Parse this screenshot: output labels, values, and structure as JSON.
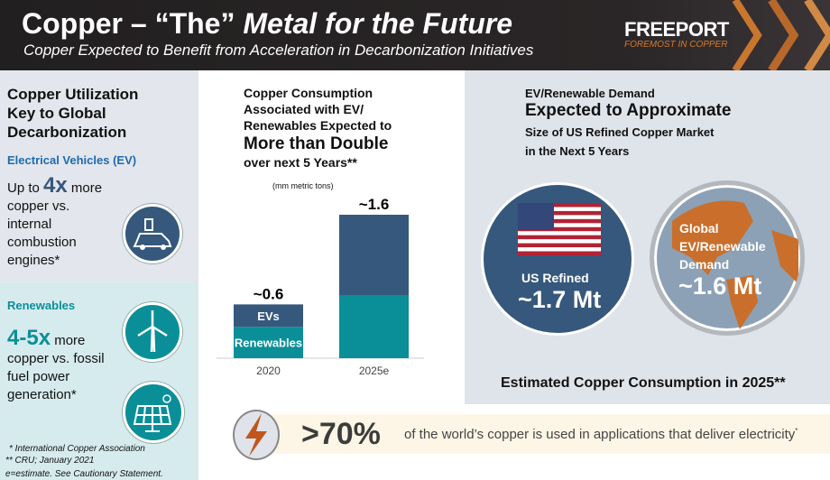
{
  "header": {
    "title_a": "Copper – “The” ",
    "title_b": "Metal for the Future",
    "subtitle": "Copper Expected to Benefit from Acceleration in Decarbonization Initiatives",
    "logo": "FREEPORT",
    "logo_tagline": "FOREMOST IN COPPER"
  },
  "left": {
    "heading": "Copper Utilization Key to Global Decarbonization",
    "ev": {
      "label": "Electrical Vehicles (EV)",
      "pre": "Up to ",
      "big": "4x",
      "post": " more",
      "rest": "copper vs. internal combustion engines*",
      "icon": "electric-car-icon"
    },
    "renew": {
      "label": "Renewables",
      "big": "4-5x",
      "post": " more",
      "rest": "copper vs. fossil fuel power generation*",
      "icons": [
        "wind-turbine-icon",
        "solar-panel-icon"
      ]
    },
    "footnotes": [
      "* International Copper Association",
      "** CRU; January 2021",
      "e=estimate. See Cautionary Statement."
    ]
  },
  "middle": {
    "line1": "Copper Consumption Associated with EV/ Renewables Expected to",
    "big": "More than Double",
    "line2": "over next 5 Years**"
  },
  "chart_data": {
    "type": "bar",
    "stacked": true,
    "ylabel": "(mm metric tons)",
    "categories": [
      "2020",
      "2025e"
    ],
    "series": [
      {
        "name": "Renewables",
        "values": [
          0.35,
          0.7
        ],
        "color": "#0a8f98"
      },
      {
        "name": "EVs",
        "values": [
          0.25,
          0.9
        ],
        "color": "#36587c"
      }
    ],
    "totals_labels": [
      "~0.6",
      "~1.6"
    ],
    "ylim": [
      0,
      1.6
    ]
  },
  "right": {
    "line1": "EV/Renewable Demand",
    "big": "Expected to Approximate",
    "line2": "Size of US Refined Copper Market",
    "line3": "in the Next 5 Years",
    "us": {
      "label": "US Refined",
      "value": "~1.7 Mt"
    },
    "global": {
      "label": "Global EV/Renewable Demand",
      "value": "~1.6 Mt"
    },
    "caption": "Estimated Copper Consumption in 2025**"
  },
  "banner": {
    "big": ">70%",
    "text": "of the world’s copper is used in applications that deliver electricity",
    "star": "*"
  },
  "colors": {
    "navy": "#36587c",
    "teal": "#0a8f98",
    "copper": "#c96f2b",
    "accent": "#1f6ab0"
  }
}
